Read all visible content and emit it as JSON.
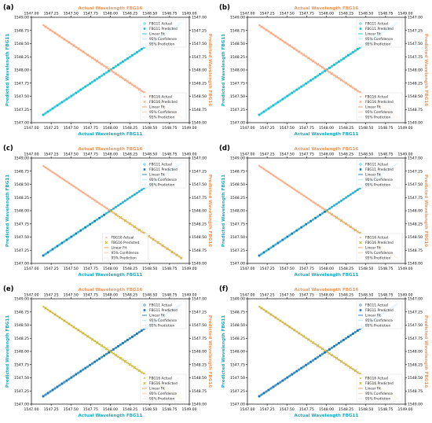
{
  "figure": {
    "axis_labels": {
      "bottom": "Actual Wavelength FBG11",
      "top": "Actual Wavelength FBG16",
      "left": "Predicted Wavelength FBG11",
      "right": "Predicted Wavelength FBG16"
    },
    "colors": {
      "fbg11_label": "#17a9c4",
      "fbg16_label": "#f0955a",
      "fbg11_actual": "#17becf",
      "fbg11_pred_blue": "#1f77b4",
      "fbg16_actual": "#f4a582",
      "fbg16_pred_olive": "#bcbd22",
      "fbg16_pred_green": "#2ca02c",
      "confidence_band": "#c7eef5"
    }
  },
  "chart_data": [
    {
      "panel_label": "(a)",
      "type": "scatter",
      "x_bottom_ticks": [
        "1547.00",
        "1547.25",
        "1547.50",
        "1547.75",
        "1548.00",
        "1548.25",
        "1548.50",
        "1548.75",
        "1549.00"
      ],
      "x_top_ticks": [
        "1547.00",
        "1547.25",
        "1547.50",
        "1547.75",
        "1548.00",
        "1548.25",
        "1548.50",
        "1548.75",
        "1549.00"
      ],
      "y_left_ticks": [
        "1547.00",
        "1547.25",
        "1547.50",
        "1547.75",
        "1548.00",
        "1548.25",
        "1548.50",
        "1548.75",
        "1549.00"
      ],
      "y_right_ticks": [
        "1547.00",
        "1547.25",
        "1547.50",
        "1547.75",
        "1548.00",
        "1548.25",
        "1548.50",
        "1548.75",
        "1549.00"
      ],
      "xlim": [
        1547.0,
        1549.0
      ],
      "ylim": [
        1547.0,
        1549.0
      ],
      "fbg11": {
        "range": [
          1547.15,
          1548.9
        ],
        "actual_color": "#17becf",
        "pred_color": "#17becf",
        "pred_from": 1547.15,
        "legend": [
          "FBG11 Actual",
          "FBG11 Predicted",
          "Linear Fit",
          "95% Confidence",
          "95% Prediction"
        ],
        "legend_pos": "top-right"
      },
      "fbg16": {
        "range": [
          1547.15,
          1548.9
        ],
        "actual_color": "#f4a582",
        "pred_color": "#f4a582",
        "pred_from": 1547.15,
        "legend": [
          "FBG16 Actual",
          "FBG16 Predicted",
          "Linear Fit",
          "95% Confidence",
          "95% Prediction"
        ],
        "legend_pos": "bottom-right"
      }
    },
    {
      "panel_label": "(b)",
      "type": "scatter",
      "x_bottom_ticks": [
        "1547.00",
        "1547.25",
        "1547.50",
        "1547.75",
        "1548.00",
        "1548.25",
        "1548.50",
        "1548.75",
        "1549.00"
      ],
      "x_top_ticks": [
        "1547.00",
        "1547.25",
        "1547.50",
        "1547.75",
        "1548.00",
        "1548.25",
        "1548.50",
        "1548.75",
        "1549.00"
      ],
      "y_left_ticks": [
        "1547.00",
        "1547.25",
        "1547.50",
        "1547.75",
        "1548.00",
        "1548.25",
        "1548.50",
        "1548.75",
        "1549.00"
      ],
      "y_right_ticks": [
        "1547.00",
        "1547.25",
        "1547.50",
        "1547.75",
        "1548.00",
        "1548.25",
        "1548.50",
        "1548.75",
        "1549.00"
      ],
      "xlim": [
        1547.0,
        1549.0
      ],
      "ylim": [
        1547.0,
        1549.0
      ],
      "fbg11": {
        "range": [
          1547.15,
          1548.9
        ],
        "actual_color": "#17becf",
        "pred_color": "#17becf",
        "pred_from": 1547.15,
        "legend": [
          "FBG11 Actual",
          "FBG11 Predicted",
          "Linear Fit",
          "95% Confidence",
          "95% Prediction"
        ],
        "legend_pos": "top-right"
      },
      "fbg16": {
        "range": [
          1547.15,
          1548.9
        ],
        "actual_color": "#f4a582",
        "pred_color": "#f4a582",
        "pred_from": 1547.15,
        "legend": [
          "FBG16 Actual",
          "FBG16 Predicted",
          "Linear Fit",
          "95% Confidence",
          "95% Prediction"
        ],
        "legend_pos": "bottom-right"
      }
    },
    {
      "panel_label": "(c)",
      "type": "scatter",
      "x_bottom_ticks": [
        "1547.00",
        "1547.25",
        "1547.50",
        "1547.75",
        "1548.00",
        "1548.25",
        "1548.50",
        "1548.75",
        "1549.00"
      ],
      "x_top_ticks": [
        "1547.00",
        "1547.25",
        "1547.50",
        "1547.75",
        "1548.00",
        "1548.25",
        "1548.50",
        "1548.75",
        "1549.00"
      ],
      "y_left_ticks": [
        "1547.00",
        "1547.25",
        "1547.50",
        "1547.75",
        "1548.00",
        "1548.25",
        "1548.50",
        "1548.75",
        "1549.00"
      ],
      "y_right_ticks": [
        "1547.00",
        "1547.25",
        "1547.50",
        "1547.75",
        "1548.00",
        "1548.25",
        "1548.50",
        "1548.75",
        "1549.00"
      ],
      "xlim": [
        1547.0,
        1549.0
      ],
      "ylim": [
        1547.0,
        1549.0
      ],
      "fbg11": {
        "range": [
          1547.15,
          1548.9
        ],
        "actual_color": "#17becf",
        "pred_color": "#1f77b4",
        "pred_from": 1547.15,
        "pred_to": 1547.95,
        "legend": [
          "FBG11 Actual",
          "FBG11 Predicted",
          "Linear Fit",
          "95% Confidence",
          "95% Prediction"
        ],
        "legend_pos": "top-right"
      },
      "fbg16": {
        "range": [
          1547.15,
          1548.9
        ],
        "actual_color": "#f4a582",
        "pred_color": "#bcbd22",
        "pred_from": 1548.0,
        "legend": [
          "FBG16 Actual",
          "FBG16 Predicted",
          "Linear Fit",
          "95% Confidence",
          "95% Prediction"
        ],
        "legend_pos": "bottom-left"
      }
    },
    {
      "panel_label": "(d)",
      "type": "scatter",
      "x_bottom_ticks": [
        "1547.00",
        "1547.25",
        "1547.50",
        "1547.75",
        "1548.00",
        "1548.25",
        "1548.50",
        "1548.75",
        "1549.00"
      ],
      "x_top_ticks": [
        "1547.00",
        "1547.25",
        "1547.50",
        "1547.75",
        "1548.00",
        "1548.25",
        "1548.50",
        "1548.75",
        "1549.00"
      ],
      "y_left_ticks": [
        "1547.00",
        "1547.25",
        "1547.50",
        "1547.75",
        "1548.00",
        "1548.25",
        "1548.50",
        "1548.75",
        "1549.00"
      ],
      "y_right_ticks": [
        "1547.00",
        "1547.25",
        "1547.50",
        "1547.75",
        "1548.00",
        "1548.25",
        "1548.50",
        "1548.75",
        "1549.00"
      ],
      "xlim": [
        1547.0,
        1549.0
      ],
      "ylim": [
        1547.0,
        1549.0
      ],
      "fbg11": {
        "range": [
          1547.15,
          1548.9
        ],
        "actual_color": "#17becf",
        "pred_color": "#1f77b4",
        "pred_from": 1547.15,
        "pred_to": 1548.0,
        "legend": [
          "FBG11 Actual",
          "FBG11 Predicted",
          "Linear Fit",
          "95% Confidence",
          "95% Prediction"
        ],
        "legend_pos": "top-right"
      },
      "fbg16": {
        "range": [
          1547.15,
          1548.9
        ],
        "actual_color": "#f4a582",
        "pred_color": "#bcbd22",
        "pred_from": 1548.0,
        "legend": [
          "FBG16 Actual",
          "FBG16 Predicted",
          "Linear Fit",
          "95% Confidence",
          "95% Prediction"
        ],
        "legend_pos": "bottom-right"
      }
    },
    {
      "panel_label": "(e)",
      "type": "scatter",
      "x_bottom_ticks": [
        "1547.00",
        "1547.25",
        "1547.50",
        "1547.75",
        "1548.00",
        "1548.25",
        "1548.50",
        "1548.75",
        "1549.00"
      ],
      "x_top_ticks": [
        "1547.00",
        "1547.25",
        "1547.50",
        "1547.75",
        "1548.00",
        "1548.25",
        "1548.50",
        "1548.75",
        "1549.00"
      ],
      "y_left_ticks": [
        "1547.00",
        "1547.25",
        "1547.50",
        "1547.75",
        "1548.00",
        "1548.25",
        "1548.50",
        "1548.75",
        "1549.00"
      ],
      "y_right_ticks": [
        "1547.00",
        "1547.25",
        "1547.50",
        "1547.75",
        "1548.00",
        "1548.25",
        "1548.50",
        "1548.75",
        "1549.00"
      ],
      "xlim": [
        1547.0,
        1549.0
      ],
      "ylim": [
        1547.0,
        1549.0
      ],
      "fbg11": {
        "range": [
          1547.15,
          1548.9
        ],
        "actual_color": "#1f77b4",
        "pred_color": "#1f77b4",
        "pred_from": 1547.15,
        "legend": [
          "FBG11 Actual",
          "FBG11 Predicted",
          "Linear Fit",
          "95% Confidence",
          "95% Prediction"
        ],
        "legend_pos": "top-right"
      },
      "fbg16": {
        "range": [
          1547.15,
          1548.9
        ],
        "actual_color": "#bcbd22",
        "pred_color": "#bcbd22",
        "pred_from": 1547.15,
        "legend": [
          "FBG16 Actual",
          "FBG16 Predicted",
          "Linear Fit",
          "95% Confidence",
          "95% Prediction"
        ],
        "legend_pos": "bottom-right"
      }
    },
    {
      "panel_label": "(f)",
      "type": "scatter",
      "x_bottom_ticks": [
        "1547.00",
        "1547.25",
        "1547.50",
        "1547.75",
        "1548.00",
        "1548.25",
        "1548.50",
        "1548.75",
        "1549.00"
      ],
      "x_top_ticks": [
        "1547.00",
        "1547.25",
        "1547.50",
        "1547.75",
        "1548.00",
        "1548.25",
        "1548.50",
        "1548.75",
        "1549.00"
      ],
      "y_left_ticks": [
        "1547.00",
        "1547.25",
        "1547.50",
        "1547.75",
        "1548.00",
        "1548.25",
        "1548.50",
        "1548.75",
        "1549.00"
      ],
      "y_right_ticks": [
        "1547.00",
        "1547.25",
        "1547.50",
        "1547.75",
        "1548.00",
        "1548.25",
        "1548.50",
        "1548.75",
        "1549.00"
      ],
      "xlim": [
        1547.0,
        1549.0
      ],
      "ylim": [
        1547.0,
        1549.0
      ],
      "fbg11": {
        "range": [
          1547.15,
          1548.9
        ],
        "actual_color": "#1f77b4",
        "pred_color": "#1f77b4",
        "pred_from": 1547.15,
        "legend": [
          "FBG11 Actual",
          "FBG11 Predicted",
          "Linear Fit",
          "95% Confidence",
          "95% Prediction"
        ],
        "legend_pos": "top-right"
      },
      "fbg16": {
        "range": [
          1547.15,
          1548.9
        ],
        "actual_color": "#bcbd22",
        "pred_color": "#bcbd22",
        "pred_from": 1547.15,
        "legend": [
          "FBG16 Actual",
          "FBG16 Predicted",
          "Linear Fit",
          "95% Confidence",
          "95% Prediction"
        ],
        "legend_pos": "bottom-right"
      }
    }
  ]
}
